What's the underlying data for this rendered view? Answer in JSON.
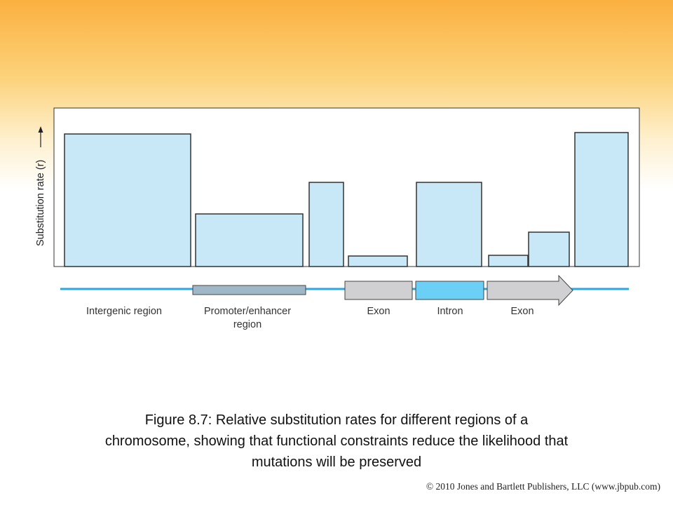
{
  "y_axis_label": "Substitution rate (r)",
  "labels": {
    "intergenic": "Intergenic region",
    "promoter_line1": "Promoter/enhancer",
    "promoter_line2": "region",
    "exon1": "Exon",
    "intron": "Intron",
    "exon2": "Exon"
  },
  "caption": {
    "line1": "Figure 8.7: Relative substitution rates for different regions of a",
    "line2": "chromosome, showing that functional constraints reduce the likelihood that",
    "line3": "mutations will be preserved"
  },
  "copyright": "© 2010 Jones and Bartlett Publishers, LLC (www.jbpub.com)",
  "colors": {
    "bar_fill": "#c8e8f8",
    "line_blue": "#29a8e0",
    "promoter": "#9fb7c6",
    "exon": "#d0d0d2",
    "intron": "#6ccff6"
  }
}
